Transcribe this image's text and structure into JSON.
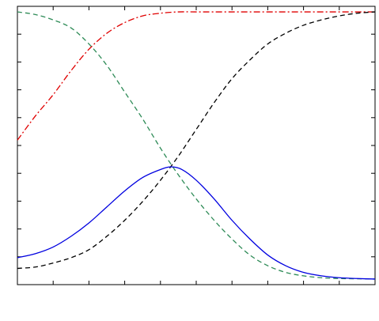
{
  "chart_data": {
    "type": "line",
    "title": "",
    "xlabel": "",
    "ylabel": "",
    "xlim": [
      0,
      1
    ],
    "ylim": [
      0,
      1
    ],
    "grid": false,
    "legend": "none",
    "tick_labels_shown": false,
    "series": [
      {
        "style": "dash-dot",
        "color": "#e00000",
        "points": [
          [
            0,
            0.52
          ],
          [
            0.05,
            0.61
          ],
          [
            0.1,
            0.69
          ],
          [
            0.15,
            0.78
          ],
          [
            0.2,
            0.86
          ],
          [
            0.25,
            0.92
          ],
          [
            0.3,
            0.96
          ],
          [
            0.35,
            0.985
          ],
          [
            0.4,
            0.995
          ],
          [
            0.45,
            1.0
          ],
          [
            0.5,
            1.0
          ],
          [
            0.6,
            1.0
          ],
          [
            0.7,
            1.0
          ],
          [
            0.8,
            1.0
          ],
          [
            0.9,
            1.0
          ],
          [
            1,
            1.0
          ]
        ]
      },
      {
        "style": "dashed",
        "color": "#2e8b57",
        "points": [
          [
            0,
            1.0
          ],
          [
            0.05,
            0.99
          ],
          [
            0.1,
            0.97
          ],
          [
            0.15,
            0.94
          ],
          [
            0.2,
            0.88
          ],
          [
            0.25,
            0.8
          ],
          [
            0.3,
            0.7
          ],
          [
            0.35,
            0.6
          ],
          [
            0.4,
            0.49
          ],
          [
            0.45,
            0.39
          ],
          [
            0.5,
            0.3
          ],
          [
            0.55,
            0.22
          ],
          [
            0.6,
            0.15
          ],
          [
            0.65,
            0.09
          ],
          [
            0.7,
            0.05
          ],
          [
            0.75,
            0.025
          ],
          [
            0.8,
            0.012
          ],
          [
            0.85,
            0.005
          ],
          [
            0.9,
            0.002
          ],
          [
            0.95,
            0.001
          ],
          [
            1,
            0.0
          ]
        ]
      },
      {
        "style": "dashed",
        "color": "#000000",
        "points": [
          [
            0,
            0.04
          ],
          [
            0.05,
            0.045
          ],
          [
            0.1,
            0.06
          ],
          [
            0.15,
            0.08
          ],
          [
            0.2,
            0.11
          ],
          [
            0.25,
            0.16
          ],
          [
            0.3,
            0.22
          ],
          [
            0.35,
            0.29
          ],
          [
            0.4,
            0.37
          ],
          [
            0.45,
            0.46
          ],
          [
            0.5,
            0.56
          ],
          [
            0.55,
            0.66
          ],
          [
            0.6,
            0.75
          ],
          [
            0.65,
            0.82
          ],
          [
            0.7,
            0.88
          ],
          [
            0.75,
            0.92
          ],
          [
            0.8,
            0.95
          ],
          [
            0.85,
            0.97
          ],
          [
            0.9,
            0.985
          ],
          [
            0.95,
            0.995
          ],
          [
            1,
            1.0
          ]
        ]
      },
      {
        "style": "solid",
        "color": "#0000e0",
        "points": [
          [
            0,
            0.08
          ],
          [
            0.05,
            0.095
          ],
          [
            0.1,
            0.12
          ],
          [
            0.15,
            0.16
          ],
          [
            0.2,
            0.21
          ],
          [
            0.25,
            0.27
          ],
          [
            0.3,
            0.33
          ],
          [
            0.35,
            0.38
          ],
          [
            0.4,
            0.41
          ],
          [
            0.43,
            0.42
          ],
          [
            0.46,
            0.41
          ],
          [
            0.5,
            0.37
          ],
          [
            0.55,
            0.3
          ],
          [
            0.6,
            0.22
          ],
          [
            0.65,
            0.15
          ],
          [
            0.7,
            0.09
          ],
          [
            0.75,
            0.05
          ],
          [
            0.8,
            0.025
          ],
          [
            0.85,
            0.012
          ],
          [
            0.9,
            0.005
          ],
          [
            0.95,
            0.002
          ],
          [
            1,
            0.0
          ]
        ]
      }
    ]
  }
}
